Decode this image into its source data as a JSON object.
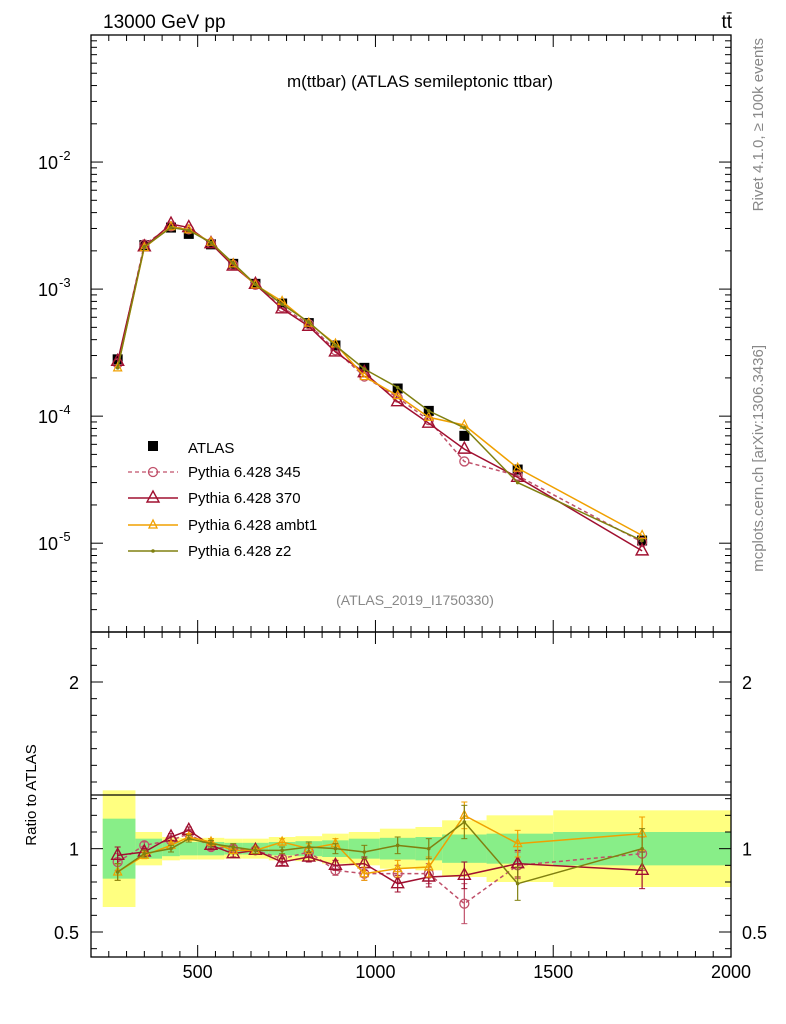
{
  "header": {
    "energy_label": "13000 GeV pp",
    "process_label": "tt̄"
  },
  "side_labels": {
    "rivet": "Rivet 4.1.0, ≥ 100k events",
    "site": "mcplots.cern.ch [arXiv:1306.3436]"
  },
  "chart_data": [
    {
      "type": "line",
      "panel": "main",
      "title": "m(ttbar) (ATLAS semileptonic ttbar)",
      "analysis_label": "(ATLAS_2019_I1750330)",
      "yscale": "log",
      "xlim": [
        200,
        2000
      ],
      "ylim": [
        2e-06,
        0.1
      ],
      "ytick_labels": [
        "10^-5",
        "10^-4",
        "10^-3",
        "10^-2"
      ],
      "x": [
        275,
        350,
        425,
        475,
        537.5,
        600,
        662.5,
        737.5,
        812.5,
        887.5,
        968.75,
        1062.5,
        1150,
        1250,
        1400,
        1750
      ],
      "series": [
        {
          "name": "ATLAS",
          "style": "data",
          "color": "#000000",
          "values": [
            0.00028,
            0.00222,
            0.00305,
            0.00272,
            0.00225,
            0.00158,
            0.0011,
            0.00077,
            0.00054,
            0.00036,
            0.00024,
            0.000165,
            0.00011,
            7e-05,
            3.8e-05,
            1.05e-05
          ]
        },
        {
          "name": "Pythia 6.428 345",
          "style": "open-circle-dashed",
          "color": "#c0506a",
          "values": [
            0.00026,
            0.00225,
            0.00312,
            0.00295,
            0.0023,
            0.00155,
            0.00108,
            0.00072,
            0.00053,
            0.00033,
            0.000205,
            0.00014,
            9.3e-05,
            4.4e-05,
            3.4e-05,
            1.02e-05
          ]
        },
        {
          "name": "Pythia 6.428 370",
          "style": "open-triangle",
          "color": "#a01030",
          "values": [
            0.00027,
            0.00215,
            0.00325,
            0.00305,
            0.00228,
            0.00152,
            0.00109,
            0.0007,
            0.00051,
            0.00032,
            0.00022,
            0.00013,
            8.8e-05,
            5.5e-05,
            3.3e-05,
            8.7e-06
          ]
        },
        {
          "name": "Pythia 6.428 ambt1",
          "style": "open-triangle-small",
          "color": "#f0a000",
          "values": [
            0.00024,
            0.00212,
            0.0031,
            0.00293,
            0.00234,
            0.00158,
            0.00108,
            0.0008,
            0.00054,
            0.00037,
            0.000205,
            0.000145,
            9.8e-05,
            8.5e-05,
            3.9e-05,
            1.15e-05
          ]
        },
        {
          "name": "Pythia 6.428 z2",
          "style": "dot-line",
          "color": "#808010",
          "values": [
            0.00024,
            0.00215,
            0.00305,
            0.0029,
            0.00232,
            0.0016,
            0.00109,
            0.00076,
            0.00055,
            0.00036,
            0.000235,
            0.000168,
            0.00011,
            8.1e-05,
            3e-05,
            1.05e-05
          ]
        }
      ]
    },
    {
      "type": "line",
      "panel": "ratio",
      "ylabel": "Ratio to ATLAS",
      "xlim": [
        200,
        2000
      ],
      "ylim": [
        0.35,
        2.3
      ],
      "x_ticks": [
        500,
        1000,
        1500,
        2000
      ],
      "x_tick_labels": [
        "500",
        "1000",
        "1500",
        "2000"
      ],
      "y_ticks": [
        0.5,
        1,
        2
      ],
      "y_tick_labels": [
        "0.5",
        "1",
        "2"
      ],
      "bins": [
        [
          233,
          325
        ],
        [
          325,
          400
        ],
        [
          400,
          450
        ],
        [
          450,
          500
        ],
        [
          500,
          575
        ],
        [
          575,
          625
        ],
        [
          625,
          700
        ],
        [
          700,
          775
        ],
        [
          775,
          850
        ],
        [
          850,
          925
        ],
        [
          925,
          1012.5
        ],
        [
          1012.5,
          1112.5
        ],
        [
          1112.5,
          1187.5
        ],
        [
          1187.5,
          1312.5
        ],
        [
          1312.5,
          1500
        ],
        [
          1500,
          2000
        ]
      ],
      "band_inner": [
        0.18,
        0.06,
        0.045,
        0.04,
        0.04,
        0.035,
        0.035,
        0.04,
        0.045,
        0.05,
        0.06,
        0.065,
        0.07,
        0.085,
        0.09,
        0.1
      ],
      "band_outer": [
        0.35,
        0.1,
        0.07,
        0.065,
        0.065,
        0.06,
        0.06,
        0.07,
        0.075,
        0.09,
        0.1,
        0.12,
        0.13,
        0.17,
        0.2,
        0.23
      ],
      "x": [
        275,
        350,
        425,
        475,
        537.5,
        600,
        662.5,
        737.5,
        812.5,
        887.5,
        968.75,
        1062.5,
        1150,
        1250,
        1400,
        1750
      ],
      "series": [
        {
          "name": "Pythia 6.428 345",
          "color": "#c0506a",
          "values": [
            0.92,
            1.02,
            1.05,
            1.09,
            1.01,
            1.0,
            0.99,
            0.94,
            0.98,
            0.87,
            0.85,
            0.85,
            0.85,
            0.67,
            0.9,
            0.97
          ],
          "errors": [
            0.05,
            0.02,
            0.02,
            0.02,
            0.02,
            0.02,
            0.02,
            0.02,
            0.03,
            0.03,
            0.04,
            0.05,
            0.06,
            0.12,
            0.08,
            0.1
          ]
        },
        {
          "name": "Pythia 6.428 370",
          "color": "#a01030",
          "values": [
            0.96,
            0.98,
            1.07,
            1.11,
            1.02,
            0.97,
            0.99,
            0.92,
            0.95,
            0.9,
            0.91,
            0.79,
            0.83,
            0.84,
            0.91,
            0.87
          ],
          "errors": [
            0.05,
            0.02,
            0.02,
            0.02,
            0.02,
            0.02,
            0.02,
            0.02,
            0.03,
            0.03,
            0.04,
            0.05,
            0.06,
            0.08,
            0.08,
            0.11
          ]
        },
        {
          "name": "Pythia 6.428 ambt1",
          "color": "#f0a000",
          "values": [
            0.86,
            0.96,
            1.02,
            1.07,
            1.04,
            0.99,
            0.99,
            1.04,
            1.0,
            1.03,
            0.85,
            0.88,
            0.89,
            1.2,
            1.03,
            1.09
          ],
          "errors": [
            0.05,
            0.02,
            0.02,
            0.02,
            0.02,
            0.02,
            0.02,
            0.02,
            0.03,
            0.03,
            0.04,
            0.05,
            0.06,
            0.08,
            0.08,
            0.1
          ]
        },
        {
          "name": "Pythia 6.428 z2",
          "color": "#808010",
          "values": [
            0.86,
            0.97,
            1.0,
            1.06,
            1.03,
            1.01,
            0.99,
            0.99,
            1.01,
            1.0,
            0.98,
            1.02,
            1.0,
            1.16,
            0.79,
            1.0
          ],
          "errors": [
            0.05,
            0.02,
            0.02,
            0.02,
            0.02,
            0.02,
            0.02,
            0.02,
            0.03,
            0.03,
            0.04,
            0.05,
            0.06,
            0.1,
            0.1,
            0.12
          ]
        }
      ]
    }
  ]
}
